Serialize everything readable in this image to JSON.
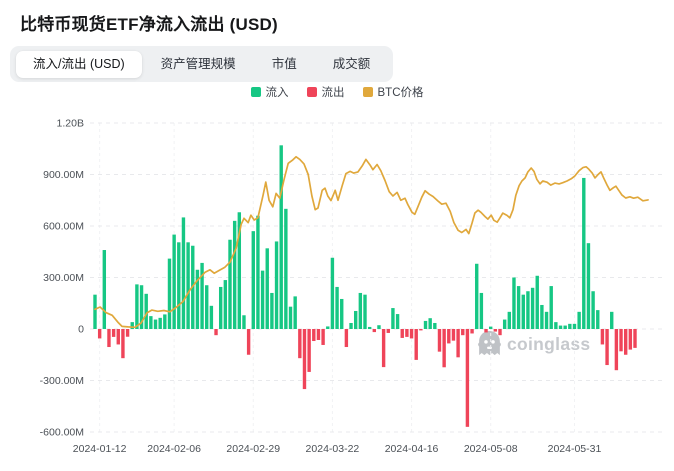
{
  "page": {
    "title": "比特币现货ETF净流入流出 (USD)"
  },
  "tabs": [
    {
      "id": "inflow-outflow",
      "label": "流入/流出 (USD)",
      "active": true
    },
    {
      "id": "aum",
      "label": "资产管理规模",
      "active": false
    },
    {
      "id": "market-cap",
      "label": "市值",
      "active": false
    },
    {
      "id": "volume",
      "label": "成交额",
      "active": false
    }
  ],
  "legend": [
    {
      "id": "inflow",
      "label": "流入",
      "color": "#16c784"
    },
    {
      "id": "outflow",
      "label": "流出",
      "color": "#ef4459"
    },
    {
      "id": "btc-price",
      "label": "BTC价格",
      "color": "#e0a83c"
    }
  ],
  "watermark": {
    "text": "coinglass",
    "color": "#c0c3c7"
  },
  "chart_data": {
    "type": "bar",
    "title": "比特币现货ETF净流入流出 (USD)",
    "xlabel": "",
    "ylabel": "",
    "grid": true,
    "legend_position": "top-center",
    "y_axis": {
      "ticks": [
        "1.20B",
        "900.00M",
        "600.00M",
        "300.00M",
        "0",
        "-300.00M",
        "-600.00M"
      ],
      "tick_values_M": [
        1200,
        900,
        600,
        300,
        0,
        -300,
        -600
      ],
      "range_M": [
        -600,
        1200
      ]
    },
    "x_axis": {
      "ticks": [
        "2024-01-12",
        "2024-02-06",
        "2024-02-29",
        "2024-03-22",
        "2024-04-16",
        "2024-05-08",
        "2024-05-31"
      ],
      "tick_bar_indices": [
        1,
        17,
        34,
        51,
        68,
        85,
        103
      ]
    },
    "series": [
      {
        "name": "流入",
        "type": "bar",
        "color": "#16c784",
        "role": "positive-values"
      },
      {
        "name": "流出",
        "type": "bar",
        "color": "#ef4459",
        "role": "negative-values"
      },
      {
        "name": "BTC价格",
        "type": "line",
        "color": "#e0a83c"
      }
    ],
    "net_flows_M": [
      200,
      -55,
      460,
      -105,
      -46,
      -90,
      -170,
      -45,
      40,
      260,
      255,
      205,
      75,
      55,
      65,
      85,
      410,
      550,
      505,
      650,
      505,
      485,
      345,
      385,
      255,
      135,
      -36,
      245,
      285,
      520,
      630,
      680,
      80,
      -150,
      570,
      660,
      340,
      470,
      210,
      510,
      1070,
      700,
      130,
      190,
      -170,
      -350,
      -250,
      -70,
      -64,
      -93,
      15,
      415,
      245,
      175,
      -105,
      35,
      105,
      210,
      200,
      12,
      -18,
      22,
      -222,
      -23,
      122,
      87,
      -52,
      -46,
      -55,
      -180,
      -8,
      47,
      63,
      35,
      -132,
      -223,
      -84,
      -68,
      -165,
      -36,
      -570,
      -26,
      380,
      210,
      -20,
      14,
      -15,
      -36,
      55,
      100,
      300,
      250,
      200,
      220,
      240,
      310,
      140,
      100,
      250,
      40,
      20,
      20,
      30,
      30,
      100,
      880,
      500,
      220,
      110,
      -90,
      -210,
      100,
      -240,
      -130,
      -150,
      -120,
      -110
    ],
    "btc_line": {
      "note": "BTC price line has no visible price axis in the screenshot; points are [bar-index, position on the flow axis in millions]",
      "points": [
        [
          0,
          115
        ],
        [
          1.1,
          128
        ],
        [
          2.4,
          95
        ],
        [
          3.7,
          80
        ],
        [
          4.9,
          40
        ],
        [
          5.8,
          15
        ],
        [
          7.1,
          12
        ],
        [
          8.6,
          10
        ],
        [
          9.9,
          35
        ],
        [
          11.2,
          95
        ],
        [
          12.2,
          110
        ],
        [
          13.5,
          103
        ],
        [
          14.8,
          108
        ],
        [
          16.1,
          100
        ],
        [
          17.4,
          125
        ],
        [
          18.9,
          160
        ],
        [
          20.4,
          228
        ],
        [
          21.9,
          280
        ],
        [
          23.6,
          330
        ],
        [
          24.7,
          345
        ],
        [
          25.6,
          325
        ],
        [
          26.6,
          340
        ],
        [
          27.9,
          360
        ],
        [
          29,
          390
        ],
        [
          30.3,
          470
        ],
        [
          31.4,
          610
        ],
        [
          32,
          645
        ],
        [
          32.9,
          620
        ],
        [
          33.5,
          663
        ],
        [
          34.2,
          635
        ],
        [
          35,
          648
        ],
        [
          36.1,
          780
        ],
        [
          36.7,
          856
        ],
        [
          37.4,
          750
        ],
        [
          38.2,
          712
        ],
        [
          38.9,
          790
        ],
        [
          39.7,
          762
        ],
        [
          40.6,
          870
        ],
        [
          41.5,
          965
        ],
        [
          42.5,
          985
        ],
        [
          43.2,
          1003
        ],
        [
          44,
          988
        ],
        [
          44.9,
          962
        ],
        [
          45.8,
          900
        ],
        [
          46.6,
          775
        ],
        [
          47.3,
          695
        ],
        [
          47.9,
          705
        ],
        [
          48.8,
          808
        ],
        [
          49.4,
          820
        ],
        [
          50,
          775
        ],
        [
          50.7,
          748
        ],
        [
          51.6,
          808
        ],
        [
          52.2,
          750
        ],
        [
          53.1,
          835
        ],
        [
          53.9,
          905
        ],
        [
          54.8,
          918
        ],
        [
          55.6,
          908
        ],
        [
          56.5,
          915
        ],
        [
          57.4,
          950
        ],
        [
          58.2,
          988
        ],
        [
          59.1,
          955
        ],
        [
          59.7,
          928
        ],
        [
          60.6,
          958
        ],
        [
          61.4,
          922
        ],
        [
          62.3,
          865
        ],
        [
          63.2,
          800
        ],
        [
          64,
          775
        ],
        [
          64.9,
          796
        ],
        [
          65.7,
          750
        ],
        [
          66.6,
          762
        ],
        [
          67.2,
          725
        ],
        [
          68.1,
          680
        ],
        [
          68.7,
          668
        ],
        [
          69.4,
          715
        ],
        [
          70.2,
          768
        ],
        [
          70.9,
          805
        ],
        [
          71.8,
          785
        ],
        [
          72.6,
          772
        ],
        [
          73.7,
          745
        ],
        [
          74.5,
          727
        ],
        [
          75.4,
          733
        ],
        [
          76.3,
          685
        ],
        [
          77.1,
          620
        ],
        [
          78,
          575
        ],
        [
          78.8,
          562
        ],
        [
          79.7,
          580
        ],
        [
          80.3,
          556
        ],
        [
          81,
          618
        ],
        [
          81.6,
          676
        ],
        [
          82.3,
          692
        ],
        [
          82.9,
          680
        ],
        [
          83.8,
          655
        ],
        [
          84.4,
          640
        ],
        [
          85.1,
          663
        ],
        [
          85.7,
          633
        ],
        [
          86.4,
          622
        ],
        [
          87,
          648
        ],
        [
          87.6,
          675
        ],
        [
          88.5,
          662
        ],
        [
          89.1,
          648
        ],
        [
          89.8,
          695
        ],
        [
          90.4,
          778
        ],
        [
          91.1,
          835
        ],
        [
          91.7,
          862
        ],
        [
          92.4,
          880
        ],
        [
          93,
          915
        ],
        [
          93.7,
          938
        ],
        [
          94.3,
          918
        ],
        [
          94.9,
          872
        ],
        [
          95.6,
          845
        ],
        [
          96.2,
          862
        ],
        [
          97.1,
          855
        ],
        [
          97.9,
          838
        ],
        [
          98.8,
          850
        ],
        [
          99.7,
          845
        ],
        [
          100.5,
          852
        ],
        [
          101.4,
          862
        ],
        [
          102.3,
          875
        ],
        [
          103.1,
          892
        ],
        [
          104,
          922
        ],
        [
          104.8,
          940
        ],
        [
          105.5,
          945
        ],
        [
          106.1,
          930
        ],
        [
          106.8,
          908
        ],
        [
          107.4,
          880
        ],
        [
          108,
          898
        ],
        [
          108.7,
          915
        ],
        [
          109.3,
          878
        ],
        [
          110,
          838
        ],
        [
          110.6,
          808
        ],
        [
          111.3,
          822
        ],
        [
          111.9,
          832
        ],
        [
          112.5,
          808
        ],
        [
          113.2,
          780
        ],
        [
          114,
          763
        ],
        [
          114.9,
          770
        ],
        [
          115.7,
          762
        ],
        [
          116.6,
          768
        ],
        [
          117.7,
          747
        ],
        [
          118.8,
          752
        ]
      ]
    }
  }
}
